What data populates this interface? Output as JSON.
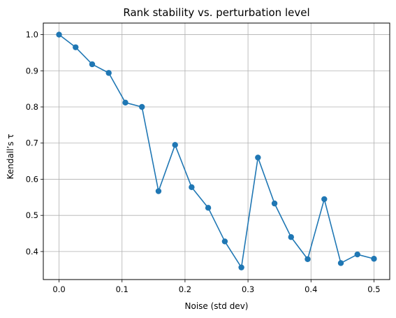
{
  "chart_data": {
    "type": "line",
    "title": "Rank stability vs. perturbation level",
    "xlabel": "Noise (std dev)",
    "ylabel": "Kendall’s τ",
    "xlim": [
      -0.025,
      0.525
    ],
    "ylim": [
      0.3225,
      1.032
    ],
    "xticks": [
      0.0,
      0.1,
      0.2,
      0.3,
      0.4,
      0.5
    ],
    "xtick_labels": [
      "0.0",
      "0.1",
      "0.2",
      "0.3",
      "0.4",
      "0.5"
    ],
    "yticks": [
      0.4,
      0.5,
      0.6,
      0.7,
      0.8,
      0.9,
      1.0
    ],
    "ytick_labels": [
      "0.4",
      "0.5",
      "0.6",
      "0.7",
      "0.8",
      "0.9",
      "1.0"
    ],
    "grid": true,
    "series": [
      {
        "color": "#1f77b4",
        "marker": "circle",
        "x": [
          0.0,
          0.0263,
          0.0526,
          0.0789,
          0.1053,
          0.1316,
          0.1579,
          0.1842,
          0.2105,
          0.2368,
          0.2632,
          0.2895,
          0.3158,
          0.3421,
          0.3684,
          0.3947,
          0.4211,
          0.4474,
          0.4737,
          0.5
        ],
        "y": [
          1.0,
          0.965,
          0.918,
          0.894,
          0.812,
          0.8,
          0.567,
          0.695,
          0.578,
          0.521,
          0.428,
          0.356,
          0.66,
          0.533,
          0.44,
          0.379,
          0.545,
          0.368,
          0.392,
          0.38
        ]
      }
    ]
  }
}
